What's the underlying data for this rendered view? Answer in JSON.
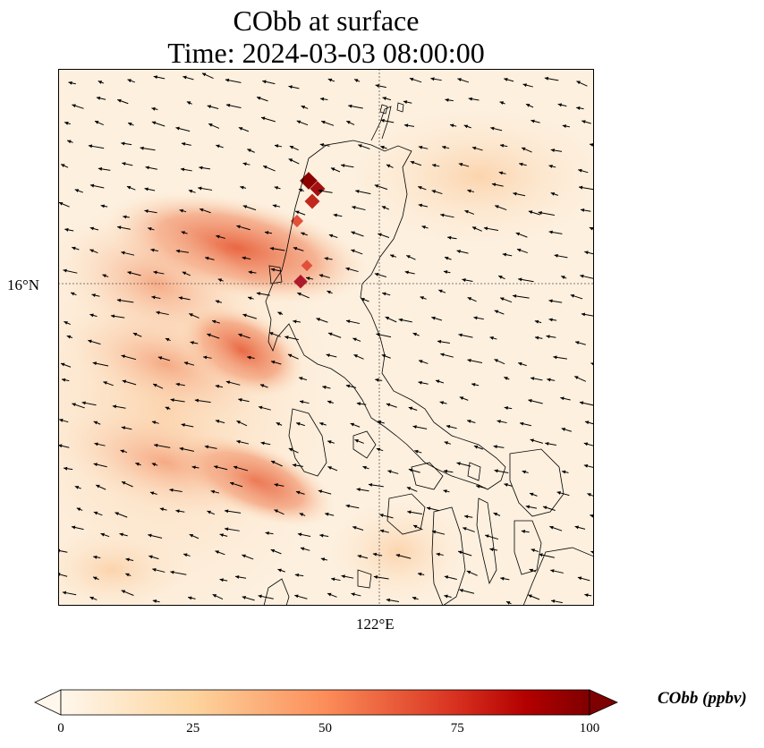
{
  "title_line1": "CObb at surface",
  "title_line2": "Time: 2024-03-03 08:00:00",
  "gridlines": {
    "lat_label": "16°N",
    "lon_label": "122°E"
  },
  "colorbar": {
    "label": "CObb (ppbv)",
    "ticks": [
      "0",
      "25",
      "50",
      "75",
      "100"
    ],
    "min": 0,
    "max": 100,
    "colormap": "OrRd",
    "extend": "both"
  },
  "colors": {
    "background_low": "#fdf0df",
    "plume_mid": "#f4a582",
    "plume_high": "#e34a33",
    "plume_peak": "#990000",
    "coastline": "#000000"
  }
}
